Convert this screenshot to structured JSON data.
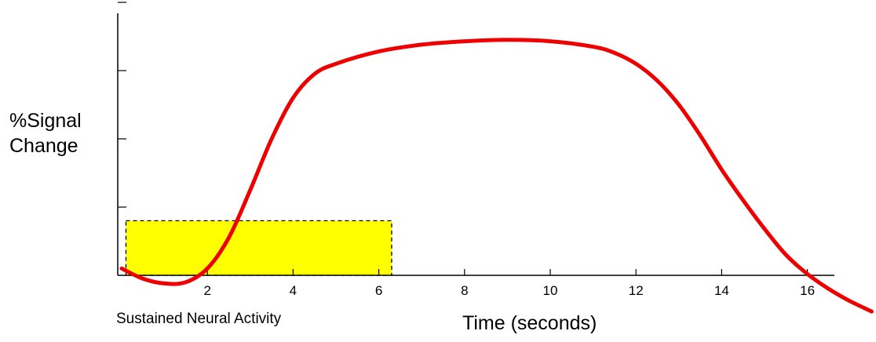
{
  "chart_data": {
    "type": "line",
    "title": "",
    "xlabel": "Time (seconds)",
    "ylabel_lines": [
      "%Signal",
      "Change"
    ],
    "xlim": [
      0,
      16
    ],
    "ylim": [
      0,
      4
    ],
    "x_ticks": [
      2,
      4,
      6,
      8,
      10,
      12,
      14,
      16
    ],
    "y_ticks": [
      1,
      2,
      3,
      4
    ],
    "y_tick_labels": false,
    "grid": false,
    "series": [
      {
        "color": "#ee0000",
        "x": [
          0,
          0.5,
          1,
          1.5,
          2,
          2.5,
          3,
          3.5,
          4,
          4.5,
          5,
          6,
          7,
          8,
          9,
          10,
          11,
          11.5,
          12,
          12.5,
          13,
          13.5,
          14,
          14.5,
          15,
          15.5,
          16,
          16.5,
          17,
          17.5
        ],
        "y": [
          0.1,
          -0.05,
          -0.12,
          -0.1,
          0.1,
          0.55,
          1.25,
          2.0,
          2.6,
          2.95,
          3.1,
          3.28,
          3.38,
          3.43,
          3.45,
          3.43,
          3.35,
          3.26,
          3.1,
          2.85,
          2.5,
          2.05,
          1.55,
          1.1,
          0.68,
          0.3,
          0.02,
          -0.2,
          -0.38,
          -0.53
        ]
      }
    ],
    "block": {
      "label": "Sustained Neural Activity",
      "x_start": 0.1,
      "x_end": 6.3,
      "height": 0.8,
      "fill": "#ffff00",
      "border": "#000000"
    }
  }
}
